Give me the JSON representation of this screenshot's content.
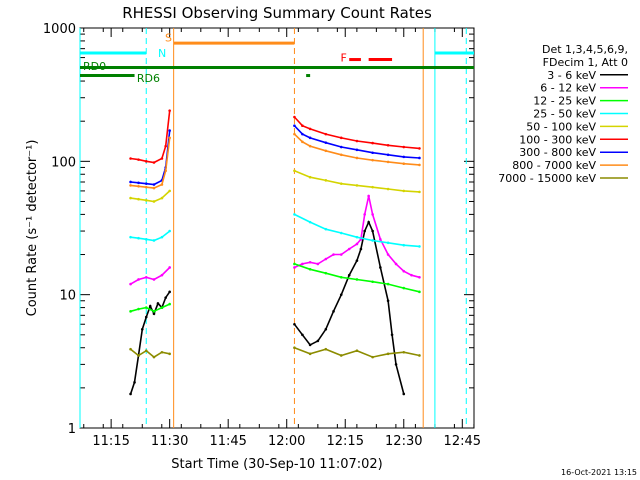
{
  "chart_data": {
    "type": "line",
    "title": "RHESSI Observing Summary Count Rates",
    "xlabel": "Start Time (30-Sep-10 11:07:02)",
    "ylabel": "Count Rate (s⁻¹ detector⁻¹)",
    "x_unit": "hours",
    "xlim": [
      11.117,
      12.8
    ],
    "ylim": [
      1,
      1000
    ],
    "yscale": "log",
    "x_ticks": [
      {
        "value": 11.25,
        "label": "11:15"
      },
      {
        "value": 11.5,
        "label": "11:30"
      },
      {
        "value": 11.75,
        "label": "11:45"
      },
      {
        "value": 12.0,
        "label": "12:00"
      },
      {
        "value": 12.25,
        "label": "12:15"
      },
      {
        "value": 12.5,
        "label": "12:30"
      },
      {
        "value": 12.75,
        "label": "12:45"
      }
    ],
    "y_ticks": [
      {
        "value": 1,
        "label": "1"
      },
      {
        "value": 10,
        "label": "10"
      },
      {
        "value": 100,
        "label": "100"
      },
      {
        "value": 1000,
        "label": "1000"
      }
    ],
    "legend": {
      "placement": "right",
      "header": [
        "Det 1,3,4,5,6,9,",
        "FDecim 1, Att 0"
      ]
    },
    "series": [
      {
        "name": "3 - 6 keV",
        "color": "#000000",
        "segments": [
          {
            "x": [
              11.333,
              11.35,
              11.367,
              11.383,
              11.4,
              11.417,
              11.433,
              11.45,
              11.467,
              11.483,
              11.5
            ],
            "y": [
              1.8,
              2.2,
              3.5,
              5.5,
              6.8,
              8.2,
              7.2,
              8.6,
              8.0,
              9.5,
              10.5
            ]
          },
          {
            "x": [
              12.033,
              12.067,
              12.1,
              12.133,
              12.167,
              12.2,
              12.233,
              12.267,
              12.3,
              12.317,
              12.333,
              12.35,
              12.367,
              12.4,
              12.433,
              12.45,
              12.467,
              12.5
            ],
            "y": [
              6.0,
              5.0,
              4.2,
              4.5,
              5.5,
              7.5,
              10.0,
              14.0,
              18.0,
              22.0,
              30.0,
              35.0,
              30.0,
              16.0,
              9.0,
              5.0,
              3.0,
              1.8
            ]
          }
        ]
      },
      {
        "name": "6 - 12 keV",
        "color": "#ff00ff",
        "segments": [
          {
            "x": [
              11.333,
              11.367,
              11.4,
              11.433,
              11.467,
              11.5
            ],
            "y": [
              12.0,
              13.0,
              13.5,
              13.0,
              14.0,
              16.0
            ]
          },
          {
            "x": [
              12.033,
              12.067,
              12.1,
              12.133,
              12.167,
              12.2,
              12.233,
              12.267,
              12.3,
              12.317,
              12.333,
              12.35,
              12.367,
              12.4,
              12.433,
              12.467,
              12.5,
              12.533,
              12.567
            ],
            "y": [
              16.0,
              17.0,
              17.5,
              17.0,
              18.5,
              20.0,
              20.0,
              22.0,
              24.0,
              26.0,
              40.0,
              55.0,
              40.0,
              26.0,
              20.0,
              17.0,
              15.0,
              14.0,
              13.5
            ]
          }
        ]
      },
      {
        "name": "12 - 25 keV",
        "color": "#00ff00",
        "segments": [
          {
            "x": [
              11.333,
              11.367,
              11.4,
              11.433,
              11.467,
              11.5
            ],
            "y": [
              7.5,
              7.8,
              8.0,
              7.5,
              8.0,
              8.5
            ]
          },
          {
            "x": [
              12.033,
              12.1,
              12.167,
              12.233,
              12.3,
              12.367,
              12.433,
              12.5,
              12.567
            ],
            "y": [
              17.0,
              15.5,
              14.5,
              13.5,
              13.0,
              12.5,
              12.0,
              11.2,
              10.5
            ]
          }
        ]
      },
      {
        "name": "25 - 50 keV",
        "color": "#00ffff",
        "segments": [
          {
            "x": [
              11.333,
              11.367,
              11.4,
              11.433,
              11.467,
              11.5
            ],
            "y": [
              27.0,
              26.5,
              26.0,
              25.5,
              27.0,
              30.0
            ]
          },
          {
            "x": [
              12.033,
              12.1,
              12.167,
              12.233,
              12.3,
              12.367,
              12.433,
              12.5,
              12.567
            ],
            "y": [
              40.0,
              35.0,
              31.0,
              29.0,
              27.0,
              25.5,
              24.5,
              23.5,
              23.0
            ]
          }
        ]
      },
      {
        "name": "50 - 100 keV",
        "color": "#d4d400",
        "segments": [
          {
            "x": [
              11.333,
              11.367,
              11.4,
              11.433,
              11.467,
              11.5
            ],
            "y": [
              53.0,
              52.0,
              51.0,
              50.0,
              53.0,
              60.0
            ]
          },
          {
            "x": [
              12.033,
              12.1,
              12.167,
              12.233,
              12.3,
              12.367,
              12.433,
              12.5,
              12.567
            ],
            "y": [
              85.0,
              76.0,
              72.0,
              68.0,
              66.0,
              64.0,
              62.0,
              60.0,
              59.0
            ]
          }
        ]
      },
      {
        "name": "100 - 300 keV",
        "color": "#ff0000",
        "segments": [
          {
            "x": [
              11.333,
              11.367,
              11.4,
              11.433,
              11.467,
              11.483,
              11.5
            ],
            "y": [
              105.0,
              103.0,
              100.0,
              98.0,
              105.0,
              130.0,
              240.0
            ]
          },
          {
            "x": [
              12.033,
              12.067,
              12.1,
              12.167,
              12.233,
              12.3,
              12.367,
              12.433,
              12.5,
              12.567
            ],
            "y": [
              215.0,
              185.0,
              175.0,
              160.0,
              150.0,
              142.0,
              137.0,
              132.0,
              128.0,
              125.0
            ]
          }
        ]
      },
      {
        "name": "300 - 800 keV",
        "color": "#0000ff",
        "segments": [
          {
            "x": [
              11.333,
              11.367,
              11.4,
              11.433,
              11.467,
              11.483,
              11.5
            ],
            "y": [
              70.0,
              69.0,
              68.0,
              67.0,
              72.0,
              90.0,
              170.0
            ]
          },
          {
            "x": [
              12.033,
              12.067,
              12.1,
              12.167,
              12.233,
              12.3,
              12.367,
              12.433,
              12.5,
              12.567
            ],
            "y": [
              185.0,
              160.0,
              150.0,
              138.0,
              128.0,
              122.0,
              116.0,
              112.0,
              108.0,
              106.0
            ]
          }
        ]
      },
      {
        "name": "800 - 7000 keV",
        "color": "#ff8c1a",
        "segments": [
          {
            "x": [
              11.333,
              11.367,
              11.4,
              11.433,
              11.467,
              11.483,
              11.5
            ],
            "y": [
              66.0,
              65.0,
              64.0,
              63.0,
              67.0,
              85.0,
              150.0
            ]
          },
          {
            "x": [
              12.033,
              12.067,
              12.1,
              12.167,
              12.233,
              12.3,
              12.367,
              12.433,
              12.5,
              12.567
            ],
            "y": [
              160.0,
              140.0,
              130.0,
              120.0,
              112.0,
              106.0,
              102.0,
              99.0,
              96.0,
              94.0
            ]
          }
        ]
      },
      {
        "name": "7000 - 15000 keV",
        "color": "#8c8c00",
        "segments": [
          {
            "x": [
              11.333,
              11.367,
              11.4,
              11.433,
              11.467,
              11.5
            ],
            "y": [
              3.9,
              3.5,
              3.8,
              3.4,
              3.7,
              3.6
            ]
          },
          {
            "x": [
              12.033,
              12.1,
              12.167,
              12.233,
              12.3,
              12.367,
              12.433,
              12.5,
              12.567
            ],
            "y": [
              4.0,
              3.6,
              3.9,
              3.5,
              3.8,
              3.4,
              3.6,
              3.7,
              3.5
            ]
          }
        ]
      }
    ],
    "annotations": [
      {
        "label": "N",
        "color": "#00ffff",
        "kind": "bar",
        "y": 650,
        "segments": [
          [
            11.117,
            11.4
          ],
          [
            12.633,
            12.8
          ]
        ],
        "lines": [
          {
            "x": 11.117,
            "style": "solid"
          },
          {
            "x": 11.4,
            "style": "dashed"
          },
          {
            "x": 12.633,
            "style": "solid"
          },
          {
            "x": 12.767,
            "style": "dashed"
          }
        ],
        "label_x": 11.45,
        "label_y": 650
      },
      {
        "label": "S",
        "color": "#ff8c1a",
        "kind": "bar",
        "y": 770,
        "segments": [
          [
            11.517,
            12.033
          ]
        ],
        "lines": [
          {
            "x": 11.517,
            "style": "solid"
          },
          {
            "x": 12.033,
            "style": "dashed"
          },
          {
            "x": 12.583,
            "style": "solid"
          }
        ],
        "label_x": 11.48,
        "label_y": 850
      },
      {
        "label": "F",
        "color": "#ff0000",
        "kind": "bar",
        "y": 580,
        "segments": [
          [
            12.267,
            12.317
          ],
          [
            12.35,
            12.45
          ]
        ],
        "lines": [],
        "label_x": 12.23,
        "label_y": 600
      },
      {
        "label": "RD0",
        "color": "#008000",
        "kind": "bar",
        "y": 505,
        "segments": [
          [
            11.117,
            12.8
          ]
        ],
        "lines": [],
        "label_x": 11.13,
        "label_y": 520
      },
      {
        "label": "RD6",
        "color": "#008000",
        "kind": "bar",
        "y": 440,
        "segments": [
          [
            11.117,
            11.35
          ],
          [
            12.083,
            12.1
          ]
        ],
        "lines": [],
        "label_x": 11.36,
        "label_y": 420
      }
    ]
  },
  "timestamp": "16-Oct-2021 13:15"
}
